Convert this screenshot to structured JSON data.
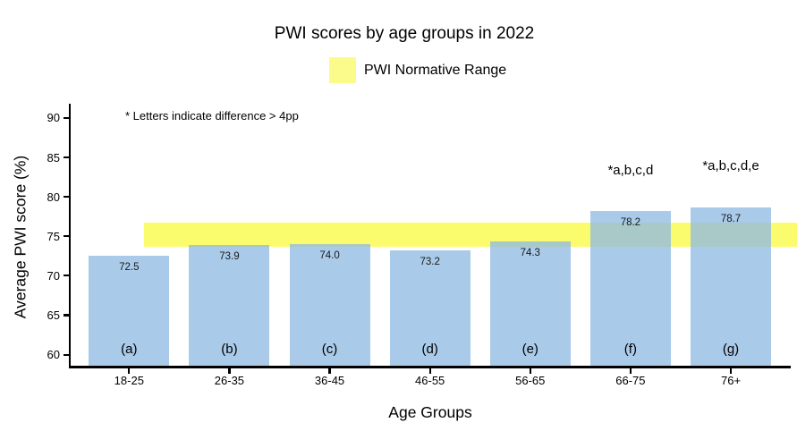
{
  "chart_data": {
    "type": "bar",
    "title": "PWI scores by age groups in 2022",
    "note": "* Letters indicate difference > 4pp",
    "xlabel": "Age Groups",
    "ylabel": "Average PWI score (%)",
    "categories": [
      "18-25",
      "26-35",
      "36-45",
      "46-55",
      "56-65",
      "66-75",
      "76+"
    ],
    "values": [
      72.5,
      73.9,
      74.0,
      73.2,
      74.3,
      78.2,
      78.7
    ],
    "value_labels": [
      "72.5",
      "73.9",
      "74.0",
      "73.2",
      "74.3",
      "78.2",
      "78.7"
    ],
    "bar_letters": [
      "(a)",
      "(b)",
      "(c)",
      "(d)",
      "(e)",
      "(f)",
      "(g)"
    ],
    "annotations": [
      {
        "category": "66-75",
        "text": "*a,b,c,d",
        "y": 82.4
      },
      {
        "category": "76+",
        "text": "*a,b,c,d,e",
        "y": 83.0
      }
    ],
    "yticks": [
      60,
      65,
      70,
      75,
      80,
      85,
      90
    ],
    "ylim": [
      58.6,
      91.8
    ],
    "normative_range": {
      "label": "PWI Normative Range",
      "min": 73.7,
      "max": 76.7
    },
    "grid": false,
    "legend_position": "top",
    "colors": {
      "bar": "rgba(145,187,225,0.78)",
      "bar_solid": "#a9cae7",
      "normative_band": "#fbfb6e",
      "legend_swatch": "#fbfb8c",
      "axis": "#000000",
      "text": "#000000"
    }
  }
}
